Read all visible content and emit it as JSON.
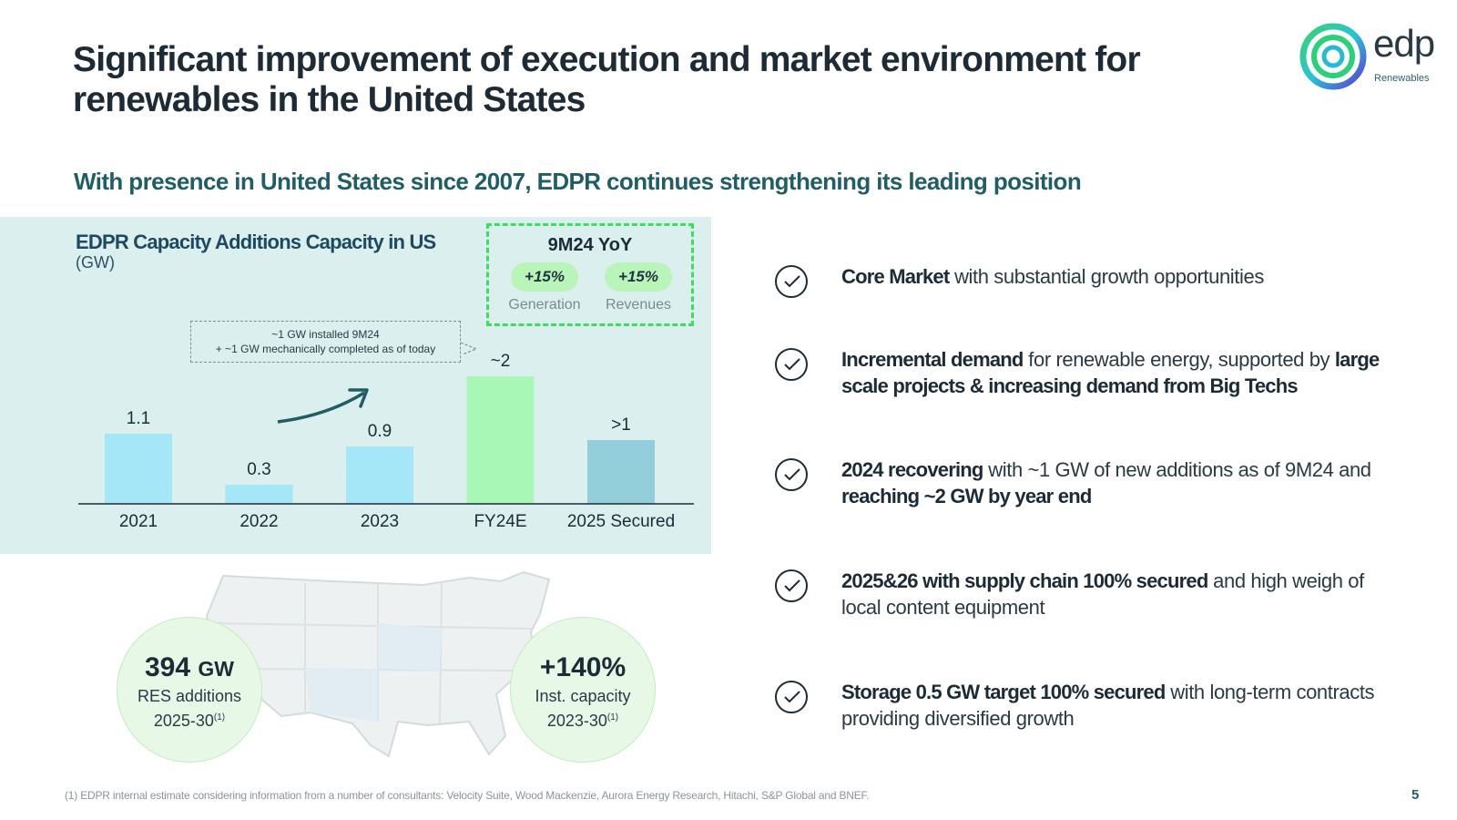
{
  "slide": {
    "title": "Significant improvement of execution and market environment for renewables in the United States",
    "subtitle": "With presence in United States since 2007, EDPR continues strengthening its leading position",
    "page_number": "5",
    "footnote": "(1) EDPR internal estimate considering information from a number of consultants: Velocity Suite, Wood Mackenzie, Aurora Energy Research, Hitachi, S&P Global and BNEF."
  },
  "logo": {
    "word": "edp",
    "sub": "Renewables"
  },
  "chart_data": {
    "type": "bar",
    "title": "EDPR Capacity Additions Capacity in US",
    "unit": "(GW)",
    "categories": [
      "2021",
      "2022",
      "2023",
      "FY24E",
      "2025 Secured"
    ],
    "values": [
      1.1,
      0.3,
      0.9,
      2,
      1
    ],
    "data_labels": [
      "1.1",
      "0.3",
      "0.9",
      "~2",
      ">1"
    ],
    "colors": [
      "#a5e6f7",
      "#a5e6f7",
      "#a5e6f7",
      "#a8f7b6",
      "#93cfdb"
    ],
    "ylim": [
      0,
      2.2
    ],
    "xlabel": "",
    "ylabel": ""
  },
  "callout": {
    "line1": "~1 GW installed 9M24",
    "line2": "+ ~1 GW mechanically completed as of today"
  },
  "yoy": {
    "title": "9M24 YoY",
    "items": [
      {
        "value": "+15%",
        "label": "Generation"
      },
      {
        "value": "+15%",
        "label": "Revenues"
      }
    ]
  },
  "kpis": [
    {
      "value": "394",
      "unit": "GW",
      "line1": "RES additions",
      "line2": "2025-30",
      "note": "(1)"
    },
    {
      "value": "+140%",
      "unit": "",
      "line1": "Inst. capacity",
      "line2": "2023-30",
      "note": "(1)"
    }
  ],
  "bullets": [
    {
      "b1": "Core Market",
      "t1": " with substantial growth opportunities",
      "b2": "",
      "t2": ""
    },
    {
      "b1": "Incremental demand",
      "t1": " for renewable energy, supported by ",
      "b2": "large scale projects & increasing demand from Big Techs",
      "t2": ""
    },
    {
      "b1": "2024 recovering",
      "t1": " with ~1 GW of new additions as of 9M24 and ",
      "b2": "reaching ~2 GW by year end",
      "t2": ""
    },
    {
      "b1": "2025&26 with supply chain 100% secured",
      "t1": " and high weigh of local content equipment",
      "b2": "",
      "t2": ""
    },
    {
      "b1": "Storage 0.5 GW target 100% secured",
      "t1": " with long-term contracts providing diversified growth",
      "b2": "",
      "t2": ""
    }
  ],
  "colors": {
    "title": "#1d2b36",
    "subtitle": "#1f5e64",
    "panel": "#dcefef",
    "accent_green": "#39e05a"
  }
}
